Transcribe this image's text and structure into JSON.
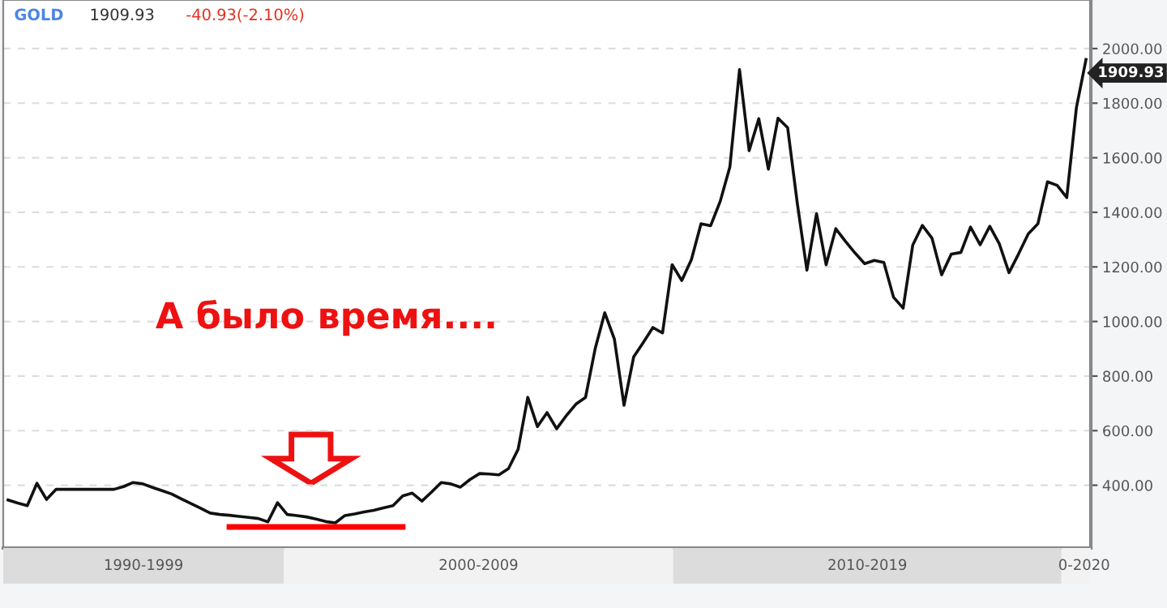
{
  "chart_data": {
    "type": "line",
    "title": "GOLD",
    "annotations": [
      "1909.93",
      "-40.93(-2.10%)",
      "А было время....",
      "1909.93",
      "1990-1999",
      "2000-2009",
      "2010-2019",
      "0-2020"
    ],
    "categories": [
      null,
      null,
      null,
      null,
      null,
      null,
      null,
      null,
      null,
      null,
      null,
      null,
      null,
      null,
      null,
      null,
      null,
      null,
      null,
      null,
      null,
      null,
      null,
      null,
      null,
      null,
      null,
      null,
      null,
      null,
      null,
      null,
      null,
      null,
      null,
      null,
      null,
      null,
      null,
      null,
      null,
      null,
      null,
      null,
      null,
      null,
      null,
      null,
      null,
      null,
      null,
      null,
      null,
      null,
      null,
      null,
      null,
      null,
      null,
      null,
      null,
      null,
      null,
      null,
      null,
      null,
      null,
      null,
      null,
      null,
      null,
      null,
      null,
      null,
      null,
      null,
      null,
      null,
      null,
      null,
      null,
      null,
      null,
      null,
      null,
      null,
      null,
      null,
      null,
      null,
      null,
      null,
      null,
      null,
      null,
      null,
      null,
      null,
      null,
      null,
      null,
      null,
      null,
      null,
      null,
      null,
      null,
      null,
      null,
      null,
      null,
      null,
      null
    ],
    "series": [
      {
        "color": "#111111",
        "values": [
          346,
          335,
          325,
          407,
          348,
          385,
          385,
          385,
          385,
          385,
          385,
          385,
          395,
          410,
          405,
          392,
          380,
          368,
          350,
          333,
          316,
          298,
          293,
          290,
          286,
          282,
          278,
          266,
          336,
          293,
          289,
          284,
          276,
          267,
          262,
          289,
          295,
          302,
          308,
          317,
          325,
          361,
          371,
          342,
          375,
          410,
          405,
          393,
          421,
          443,
          441,
          438,
          461,
          532,
          722,
          615,
          666,
          607,
          655,
          697,
          722,
          900,
          1032,
          935,
          693,
          870,
          923,
          978,
          958,
          1208,
          1150,
          1227,
          1358,
          1351,
          1441,
          1567,
          1923,
          1626,
          1743,
          1558,
          1745,
          1710,
          1434,
          1188,
          1395,
          1208,
          1340,
          1294,
          1251,
          1212,
          1224,
          1216,
          1089,
          1049,
          1280,
          1352,
          1305,
          1171,
          1247,
          1253,
          1346,
          1281,
          1349,
          1284,
          1179,
          1248,
          1321,
          1358,
          1512,
          1499,
          1454,
          1783,
          1960
        ]
      },
      {
        "color": "#ff0000",
        "values": [
          null,
          null,
          null,
          null,
          null,
          null,
          null,
          null,
          null,
          null,
          null,
          null,
          null,
          null,
          null,
          null,
          null,
          null,
          null,
          null,
          null,
          null,
          null,
          247,
          247,
          247,
          247,
          247,
          247,
          247,
          247,
          247,
          247,
          247,
          247,
          247,
          247,
          247,
          247,
          247,
          247,
          247,
          null,
          null,
          null,
          null,
          null,
          null,
          null,
          null,
          null,
          null,
          null,
          null,
          null,
          null,
          null,
          null,
          null,
          null,
          null,
          null,
          null,
          null,
          null,
          null,
          null,
          null,
          null,
          null,
          null,
          null,
          null,
          null,
          null,
          null,
          null,
          null,
          null,
          null,
          null,
          null,
          null,
          null,
          null,
          null,
          null,
          null,
          null,
          null,
          null,
          null,
          null,
          null,
          null,
          null,
          null,
          null,
          null,
          null,
          null,
          null,
          null,
          null,
          null,
          null,
          null,
          null,
          null,
          null,
          null,
          null,
          null
        ]
      }
    ],
    "ylim": [
      170,
      2178
    ],
    "yticks": [
      {
        "value": 400,
        "label": "400.00"
      },
      {
        "value": 600,
        "label": "600.00"
      },
      {
        "value": 800,
        "label": "800.00"
      },
      {
        "value": 1000,
        "label": "1000.00"
      },
      {
        "value": 1200,
        "label": "1200.00"
      },
      {
        "value": 1400,
        "label": "1400.00"
      },
      {
        "value": 1600,
        "label": "1600.00"
      },
      {
        "value": 1800,
        "label": "1800.00"
      },
      {
        "value": 2000,
        "label": "2000.00"
      }
    ],
    "grid": "y",
    "marker": "none",
    "line_style": "solid"
  }
}
